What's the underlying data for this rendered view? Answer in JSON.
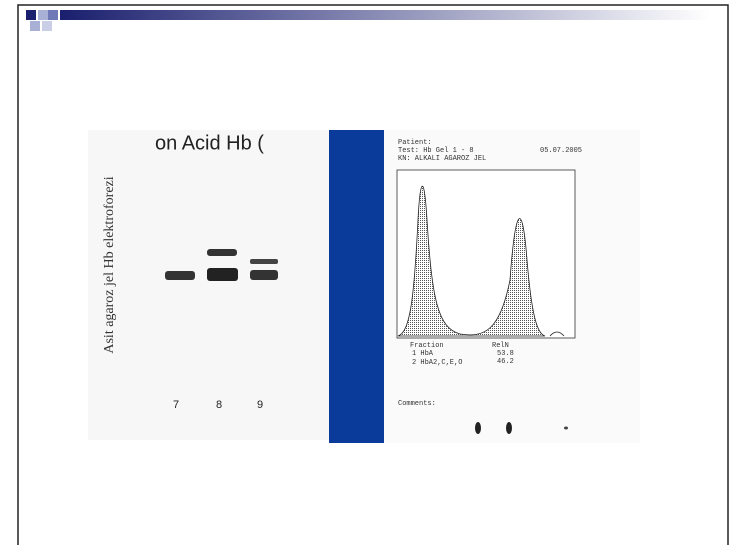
{
  "gel_image": {
    "heading": "on  Acid Hb (",
    "caption": "Asit agaroz jel Hb elektroforezi",
    "lanes": [
      "7",
      "8",
      "9"
    ]
  },
  "report": {
    "patient_label": "Patient:",
    "test_line": "Test: Hb Gel 1 - 8",
    "date": "05.07.2005",
    "kn_line": "KN:  ALKALI AGAROZ JEL",
    "table": {
      "headers": [
        "Fraction",
        "RelN"
      ],
      "rows": [
        [
          "1 HbA",
          "53.8"
        ],
        [
          "2 HbA2,C,E,O",
          "46.2"
        ]
      ]
    },
    "comments_label": "Comments:"
  }
}
